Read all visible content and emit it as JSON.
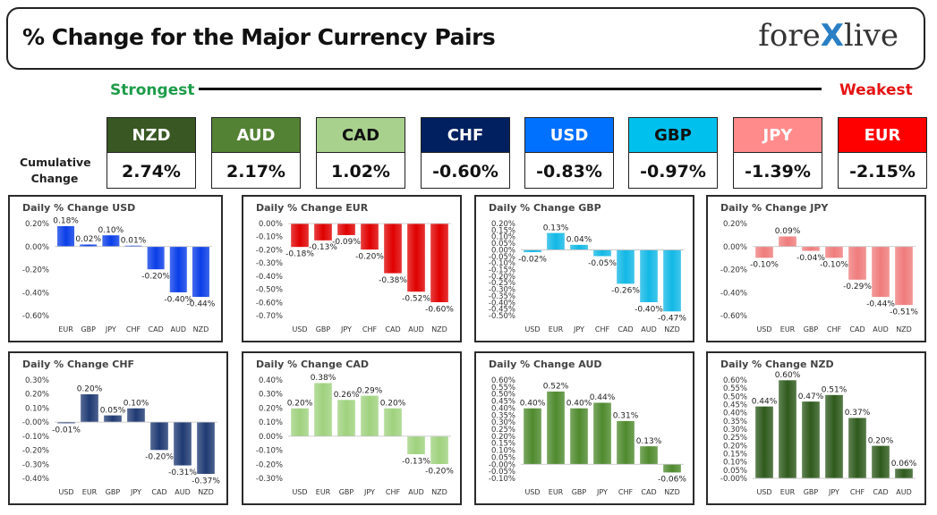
{
  "header": {
    "title": "% Change for the Major Currency Pairs",
    "logo_text_left": "fore",
    "logo_x": "X",
    "logo_text_right": "live"
  },
  "scale": {
    "strongest": "Strongest",
    "weakest": "Weakest"
  },
  "cumulative_label": "Cumulative Change",
  "currencies": [
    {
      "code": "NZD",
      "value": "2.74%",
      "color": "#385723",
      "text_color": "#ffffff"
    },
    {
      "code": "AUD",
      "value": "2.17%",
      "color": "#548235",
      "text_color": "#ffffff"
    },
    {
      "code": "CAD",
      "value": "1.02%",
      "color": "#a9d18e",
      "text_color": "#111111"
    },
    {
      "code": "CHF",
      "value": "-0.60%",
      "color": "#002060",
      "text_color": "#ffffff"
    },
    {
      "code": "USD",
      "value": "-0.83%",
      "color": "#0070ff",
      "text_color": "#ffffff"
    },
    {
      "code": "GBP",
      "value": "-0.97%",
      "color": "#00c0ee",
      "text_color": "#111111"
    },
    {
      "code": "JPY",
      "value": "-1.39%",
      "color": "#ff8b8b",
      "text_color": "#ffffff"
    },
    {
      "code": "EUR",
      "value": "-2.15%",
      "color": "#ff0000",
      "text_color": "#ffffff"
    }
  ],
  "chart_data": [
    {
      "type": "bar",
      "title": "Daily % Change USD",
      "categories": [
        "EUR",
        "GBP",
        "JPY",
        "CHF",
        "CAD",
        "AUD",
        "NZD"
      ],
      "values": [
        0.18,
        0.02,
        0.1,
        0.01,
        -0.2,
        -0.4,
        -0.44
      ],
      "labels": [
        "0.18%",
        "0.02%",
        "0.10%",
        "0.01%",
        "-0.20%",
        "-0.40%",
        "-0.44%"
      ],
      "ylim": [
        -0.6,
        0.2
      ],
      "ystep": 0.2,
      "yticks_decimals": 2,
      "color": "#0a3ee8"
    },
    {
      "type": "bar",
      "title": "Daily % Change EUR",
      "categories": [
        "USD",
        "GBP",
        "JPY",
        "CHF",
        "CAD",
        "AUD",
        "NZD"
      ],
      "values": [
        -0.18,
        -0.13,
        -0.09,
        -0.2,
        -0.38,
        -0.52,
        -0.6
      ],
      "labels": [
        "-0.18%",
        "-0.13%",
        "-0.09%",
        "-0.20%",
        "-0.38%",
        "-0.52%",
        "-0.60%"
      ],
      "ylim": [
        -0.7,
        0.0
      ],
      "ystep": 0.1,
      "yticks_decimals": 2,
      "color": "#e00000"
    },
    {
      "type": "bar",
      "title": "Daily % Change GBP",
      "categories": [
        "USD",
        "EUR",
        "JPY",
        "CHF",
        "CAD",
        "AUD",
        "NZD"
      ],
      "values": [
        -0.02,
        0.13,
        0.04,
        -0.05,
        -0.26,
        -0.4,
        -0.47
      ],
      "labels": [
        "-0.02%",
        "0.13%",
        "0.04%",
        "-0.05%",
        "-0.26%",
        "-0.40%",
        "-0.47%"
      ],
      "ylim": [
        -0.5,
        0.2
      ],
      "ystep": 0.05,
      "yticks_decimals": 2,
      "color": "#12b8e6"
    },
    {
      "type": "bar",
      "title": "Daily % Change JPY",
      "categories": [
        "USD",
        "EUR",
        "GBP",
        "CHF",
        "CAD",
        "AUD",
        "NZD"
      ],
      "values": [
        -0.1,
        0.09,
        -0.04,
        -0.1,
        -0.29,
        -0.44,
        -0.51
      ],
      "labels": [
        "-0.10%",
        "0.09%",
        "-0.04%",
        "-0.10%",
        "-0.29%",
        "-0.44%",
        "-0.51%"
      ],
      "ylim": [
        -0.6,
        0.2
      ],
      "ystep": 0.2,
      "yticks_decimals": 2,
      "color": "#f07c7c"
    },
    {
      "type": "bar",
      "title": "Daily % Change CHF",
      "categories": [
        "USD",
        "EUR",
        "GBP",
        "JPY",
        "CAD",
        "AUD",
        "NZD"
      ],
      "values": [
        -0.01,
        0.2,
        0.05,
        0.1,
        -0.2,
        -0.31,
        -0.37
      ],
      "labels": [
        "-0.01%",
        "0.20%",
        "0.05%",
        "0.10%",
        "-0.20%",
        "-0.31%",
        "-0.37%"
      ],
      "ylim": [
        -0.4,
        0.3
      ],
      "ystep": 0.1,
      "yticks_decimals": 2,
      "color": "#1f3a73"
    },
    {
      "type": "bar",
      "title": "Daily % Change CAD",
      "categories": [
        "USD",
        "EUR",
        "GBP",
        "JPY",
        "CHF",
        "AUD",
        "NZD"
      ],
      "values": [
        0.2,
        0.38,
        0.26,
        0.29,
        0.2,
        -0.13,
        -0.2
      ],
      "labels": [
        "0.20%",
        "0.38%",
        "0.26%",
        "0.29%",
        "0.20%",
        "-0.13%",
        "-0.20%"
      ],
      "ylim": [
        -0.3,
        0.4
      ],
      "ystep": 0.1,
      "yticks_decimals": 2,
      "color": "#9fd27e"
    },
    {
      "type": "bar",
      "title": "Daily % Change AUD",
      "categories": [
        "USD",
        "EUR",
        "GBP",
        "JPY",
        "CHF",
        "CAD",
        "NZD"
      ],
      "values": [
        0.4,
        0.52,
        0.4,
        0.44,
        0.31,
        0.13,
        -0.06
      ],
      "labels": [
        "0.40%",
        "0.52%",
        "0.40%",
        "0.44%",
        "0.31%",
        "0.13%",
        "-0.06%"
      ],
      "ylim": [
        -0.1,
        0.6
      ],
      "ystep": 0.05,
      "yticks_decimals": 2,
      "color": "#4f8a2e"
    },
    {
      "type": "bar",
      "title": "Daily % Change NZD",
      "categories": [
        "USD",
        "EUR",
        "GBP",
        "JPY",
        "CHF",
        "CAD",
        "AUD"
      ],
      "values": [
        0.44,
        0.6,
        0.47,
        0.51,
        0.37,
        0.2,
        0.06
      ],
      "labels": [
        "0.44%",
        "0.60%",
        "0.47%",
        "0.51%",
        "0.37%",
        "0.20%",
        "0.06%"
      ],
      "ylim": [
        0.0,
        0.6
      ],
      "ystep": 0.05,
      "yticks_decimals": 2,
      "color": "#2e5a1c"
    }
  ]
}
